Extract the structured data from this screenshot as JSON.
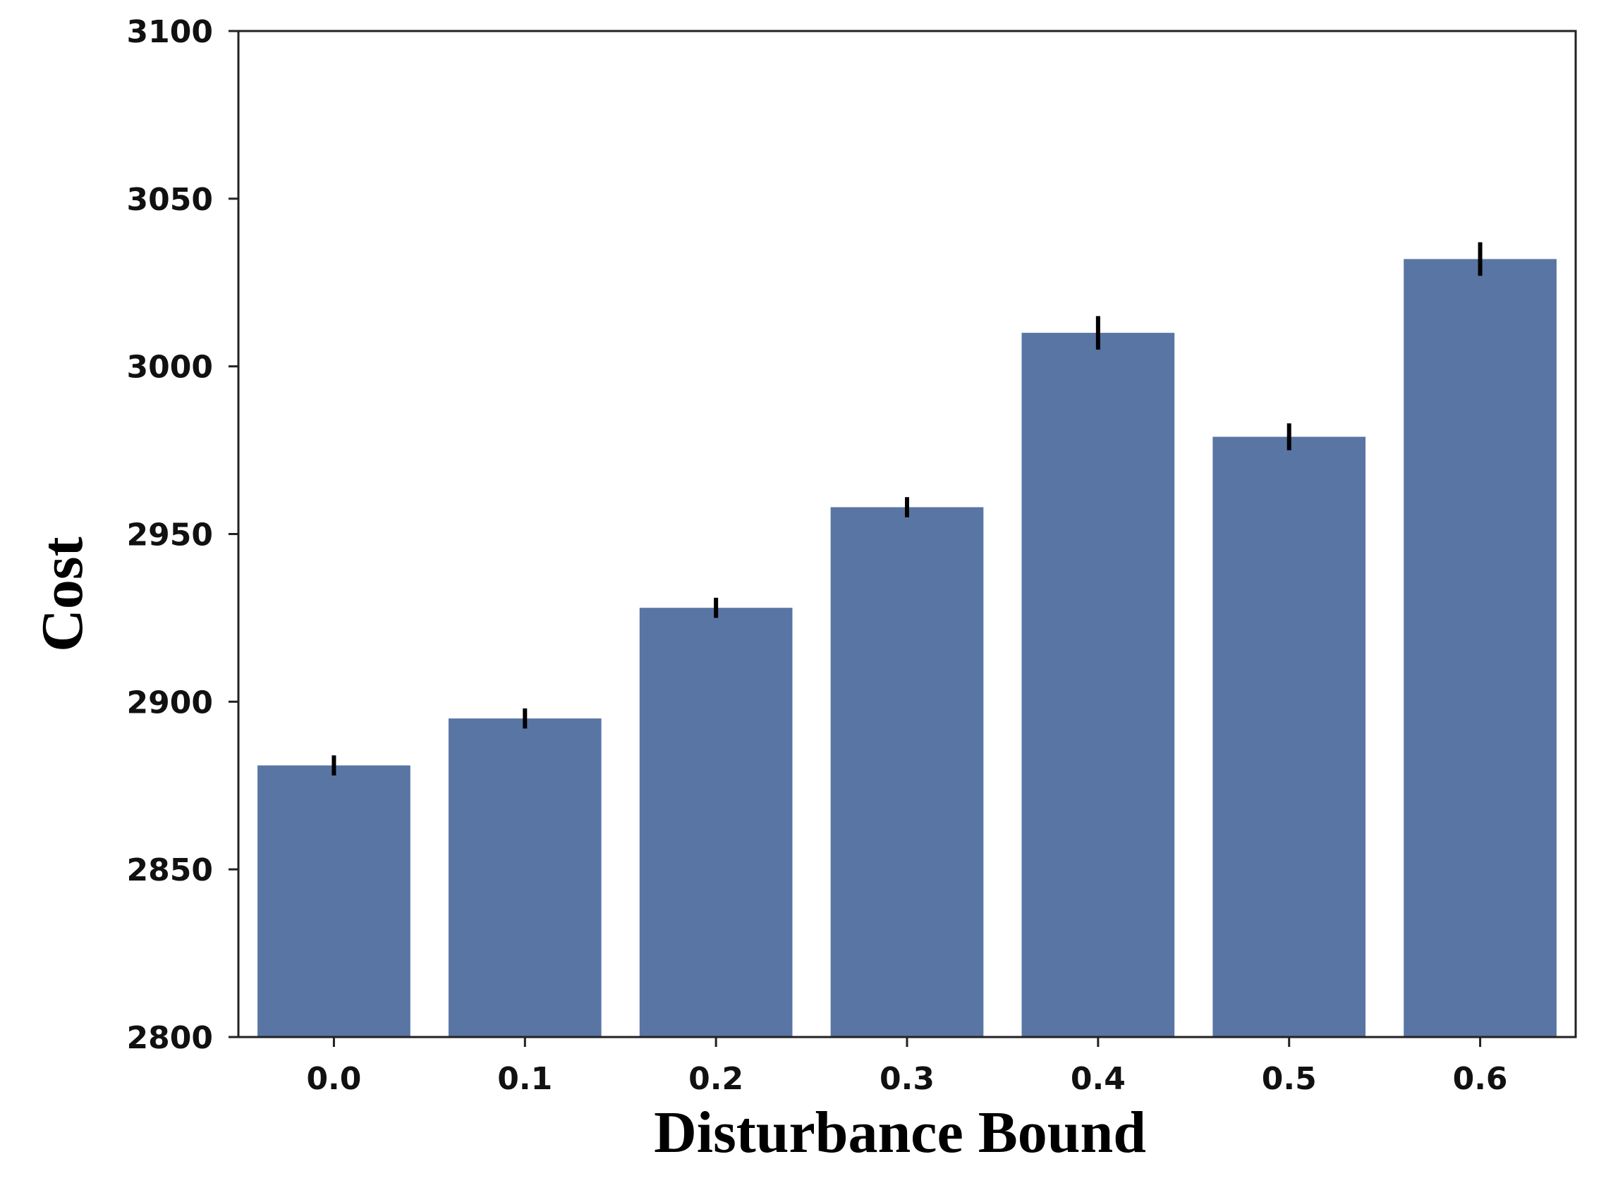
{
  "chart_data": {
    "type": "bar",
    "xlabel": "Disturbance Bound",
    "ylabel": "Cost",
    "categories": [
      "0.0",
      "0.1",
      "0.2",
      "0.3",
      "0.4",
      "0.5",
      "0.6"
    ],
    "values": [
      2881,
      2895,
      2928,
      2958,
      3010,
      2979,
      3032
    ],
    "error": [
      3,
      3,
      3,
      3,
      5,
      4,
      5
    ],
    "ylim": [
      2800,
      3100
    ],
    "yticks": [
      2800,
      2850,
      2900,
      2950,
      3000,
      3050,
      3100
    ],
    "grid": false,
    "bar_color": "#5975a4",
    "errorbar_color": "#000000"
  }
}
